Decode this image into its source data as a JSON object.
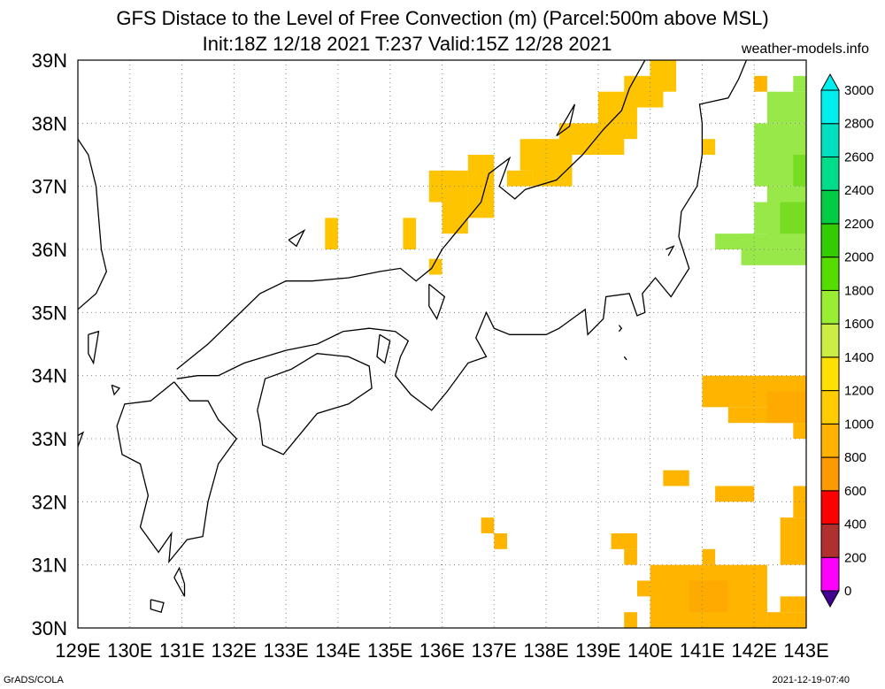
{
  "header": {
    "title_line1": "GFS Distace to the Level of Free Convection (m) (Parcel:500m above MSL)",
    "title_line2": "Init:18Z 12/18 2021 T:237 Valid:15Z 12/28 2021",
    "site": "weather-models.info"
  },
  "footer": {
    "left": "GrADS/COLA",
    "right": "2021-12-19-07:40"
  },
  "map": {
    "lon_range": [
      129,
      143
    ],
    "lat_range": [
      30,
      39
    ],
    "lon_labels": [
      "129E",
      "130E",
      "131E",
      "132E",
      "133E",
      "134E",
      "135E",
      "136E",
      "137E",
      "138E",
      "139E",
      "140E",
      "141E",
      "142E",
      "143E"
    ],
    "lat_labels": [
      "30N",
      "31N",
      "32N",
      "33N",
      "34N",
      "35N",
      "36N",
      "37N",
      "38N",
      "39N"
    ],
    "grid": "dotted"
  },
  "colorbar": {
    "ticks": [
      "0",
      "200",
      "400",
      "600",
      "800",
      "1000",
      "1200",
      "1400",
      "1600",
      "1800",
      "2000",
      "2200",
      "2400",
      "2600",
      "2800",
      "3000"
    ],
    "colors": [
      "#400090",
      "#ff00ff",
      "#b03030",
      "#ff0000",
      "#ff9900",
      "#ffb300",
      "#ffcc00",
      "#ffe000",
      "#ccee44",
      "#99ee33",
      "#55dd00",
      "#33cc00",
      "#00cc44",
      "#00dd88",
      "#00e0c0",
      "#00eeee"
    ]
  },
  "data_regions": [
    {
      "color": "#ffc400",
      "cells": [
        [
          140.25,
          38.75
        ],
        [
          140.0,
          38.5
        ],
        [
          139.5,
          38.25
        ],
        [
          139.25,
          38.0
        ],
        [
          138.75,
          37.75
        ],
        [
          138.25,
          37.5
        ],
        [
          137.75,
          37.25
        ],
        [
          137.25,
          37.0
        ],
        [
          136.5,
          37.25
        ],
        [
          136.25,
          36.75
        ],
        [
          136.0,
          36.5
        ],
        [
          135.75,
          35.75
        ],
        [
          134.0,
          36.25
        ],
        [
          135.5,
          36.25
        ]
      ]
    },
    {
      "color": "#99e84a",
      "cells": [
        [
          142.25,
          37.75
        ],
        [
          142.5,
          37.25
        ],
        [
          142.25,
          36.75
        ],
        [
          142.0,
          36.25
        ],
        [
          141.5,
          36.0
        ]
      ]
    },
    {
      "color": "#ffb400",
      "cells": [
        [
          141.75,
          33.75
        ],
        [
          142.25,
          33.5
        ],
        [
          142.75,
          33.75
        ],
        [
          141.0,
          30.5
        ],
        [
          142.0,
          30.25
        ],
        [
          141.5,
          30.0
        ]
      ]
    }
  ]
}
